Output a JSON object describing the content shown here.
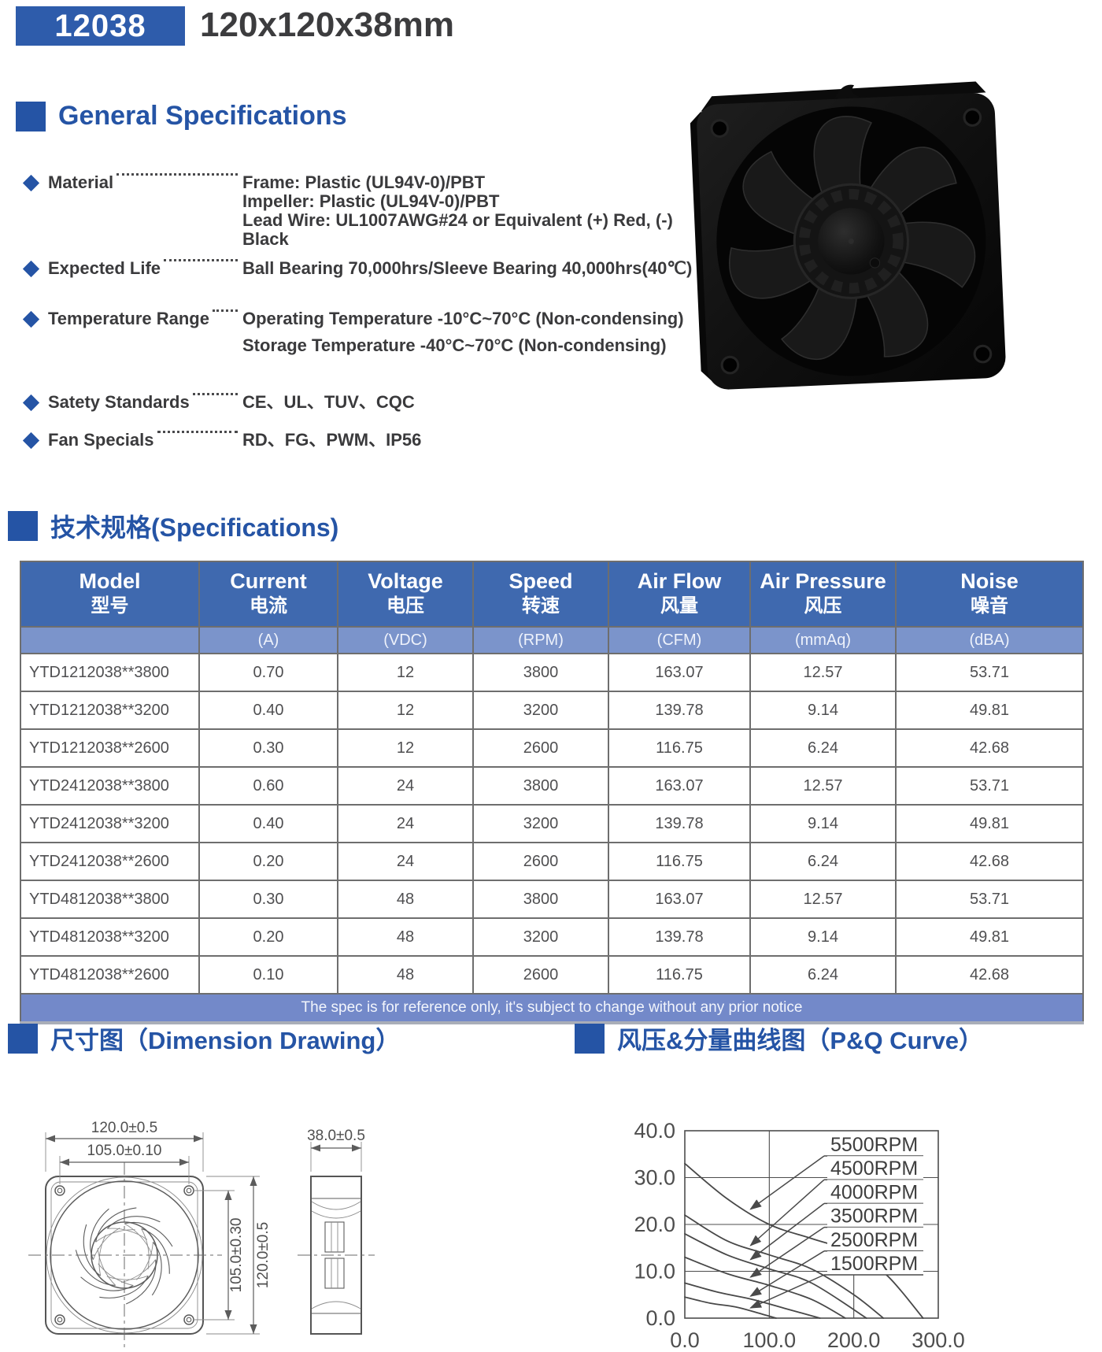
{
  "header": {
    "model_code": "12038",
    "size": "120x120x38mm"
  },
  "sections": {
    "general": "General Specifications",
    "specs": "技术规格(Specifications)",
    "dimension": "尺寸图（Dimension Drawing）",
    "pq": "风压&分量曲线图（P&Q Curve）"
  },
  "general_specs": {
    "items": [
      {
        "label": "Material",
        "values": [
          "Frame: Plastic (UL94V-0)/PBT",
          "Impeller: Plastic (UL94V-0)/PBT",
          "Lead Wire: UL1007AWG#24 or Equivalent (+) Red, (-) Black"
        ]
      },
      {
        "label": "Expected Life",
        "values": [
          "Ball Bearing 70,000hrs/Sleeve Bearing 40,000hrs(40℃)"
        ]
      },
      {
        "label": "Temperature Range",
        "values": [
          "Operating Temperature -10°C~70°C (Non-condensing)",
          "Storage Temperature -40°C~70°C (Non-condensing)"
        ]
      },
      {
        "label": "Satety Standards",
        "values": [
          "CE、UL、TUV、CQC"
        ]
      },
      {
        "label": "Fan Specials",
        "values": [
          "RD、FG、PWM、IP56"
        ]
      }
    ]
  },
  "spec_table": {
    "columns": [
      {
        "en": "Model",
        "cn": "型号",
        "unit": ""
      },
      {
        "en": "Current",
        "cn": "电流",
        "unit": "(A)"
      },
      {
        "en": "Voltage",
        "cn": "电压",
        "unit": "(VDC)"
      },
      {
        "en": "Speed",
        "cn": "转速",
        "unit": "(RPM)"
      },
      {
        "en": "Air Flow",
        "cn": "风量",
        "unit": "(CFM)"
      },
      {
        "en": "Air Pressure",
        "cn": "风压",
        "unit": "(mmAq)"
      },
      {
        "en": "Noise",
        "cn": "噪音",
        "unit": "(dBA)"
      }
    ],
    "rows": [
      [
        "YTD1212038**3800",
        "0.70",
        "12",
        "3800",
        "163.07",
        "12.57",
        "53.71"
      ],
      [
        "YTD1212038**3200",
        "0.40",
        "12",
        "3200",
        "139.78",
        "9.14",
        "49.81"
      ],
      [
        "YTD1212038**2600",
        "0.30",
        "12",
        "2600",
        "116.75",
        "6.24",
        "42.68"
      ],
      [
        "YTD2412038**3800",
        "0.60",
        "24",
        "3800",
        "163.07",
        "12.57",
        "53.71"
      ],
      [
        "YTD2412038**3200",
        "0.40",
        "24",
        "3200",
        "139.78",
        "9.14",
        "49.81"
      ],
      [
        "YTD2412038**2600",
        "0.20",
        "24",
        "2600",
        "116.75",
        "6.24",
        "42.68"
      ],
      [
        "YTD4812038**3800",
        "0.30",
        "48",
        "3800",
        "163.07",
        "12.57",
        "53.71"
      ],
      [
        "YTD4812038**3200",
        "0.20",
        "48",
        "3200",
        "139.78",
        "9.14",
        "49.81"
      ],
      [
        "YTD4812038**2600",
        "0.10",
        "48",
        "2600",
        "116.75",
        "6.24",
        "42.68"
      ]
    ],
    "footnote": "The spec is for reference only, it's subject to change without any prior notice"
  },
  "dimension_drawing": {
    "labels": {
      "outer_width": "120.0±0.5",
      "hole_pitch_h": "105.0±0.10",
      "hole_pitch_v": "105.0±0.30",
      "outer_height": "120.0±0.5",
      "depth": "38.0±0.5"
    }
  },
  "chart_data": {
    "type": "line",
    "title": "",
    "xlabel": "",
    "ylabel": "",
    "xlim": [
      0,
      300
    ],
    "ylim": [
      0,
      40
    ],
    "x_ticks": [
      "0.0",
      "100.0",
      "200.0",
      "300.0"
    ],
    "y_ticks": [
      "0.0",
      "10.0",
      "20.0",
      "30.0",
      "40.0"
    ],
    "grid": true,
    "legend_position": "boxed labels top-right with leader arrows",
    "series": [
      {
        "name": "5500RPM",
        "points": [
          [
            0,
            33
          ],
          [
            50,
            25.5
          ],
          [
            100,
            20
          ],
          [
            150,
            17
          ],
          [
            200,
            14
          ],
          [
            240,
            9
          ],
          [
            282,
            0
          ]
        ]
      },
      {
        "name": "4500RPM",
        "points": [
          [
            0,
            22
          ],
          [
            50,
            16.5
          ],
          [
            100,
            13.5
          ],
          [
            150,
            10.5
          ],
          [
            200,
            5
          ],
          [
            235,
            0
          ]
        ]
      },
      {
        "name": "4000RPM",
        "points": [
          [
            0,
            18
          ],
          [
            50,
            13.5
          ],
          [
            100,
            10.5
          ],
          [
            150,
            7.5
          ],
          [
            215,
            0
          ]
        ]
      },
      {
        "name": "3500RPM",
        "points": [
          [
            0,
            13
          ],
          [
            50,
            9.5
          ],
          [
            100,
            7
          ],
          [
            150,
            4
          ],
          [
            190,
            0
          ]
        ]
      },
      {
        "name": "2500RPM",
        "points": [
          [
            0,
            7.5
          ],
          [
            40,
            5.5
          ],
          [
            80,
            4
          ],
          [
            120,
            2
          ],
          [
            160,
            0
          ]
        ]
      },
      {
        "name": "1500RPM",
        "points": [
          [
            0,
            4.5
          ],
          [
            30,
            3.2
          ],
          [
            60,
            2.4
          ],
          [
            85,
            1.2
          ],
          [
            108,
            0
          ]
        ]
      }
    ]
  },
  "colors": {
    "accent_blue": "#2554a5",
    "badge_blue": "#2e5cab",
    "table_header_blue": "#3f69af",
    "table_unit_blue": "#7b94cb",
    "table_footer_blue": "#7389c9",
    "drawing_line_gray": "#5c5c5c",
    "body_text_gray": "#3a3a3c"
  }
}
